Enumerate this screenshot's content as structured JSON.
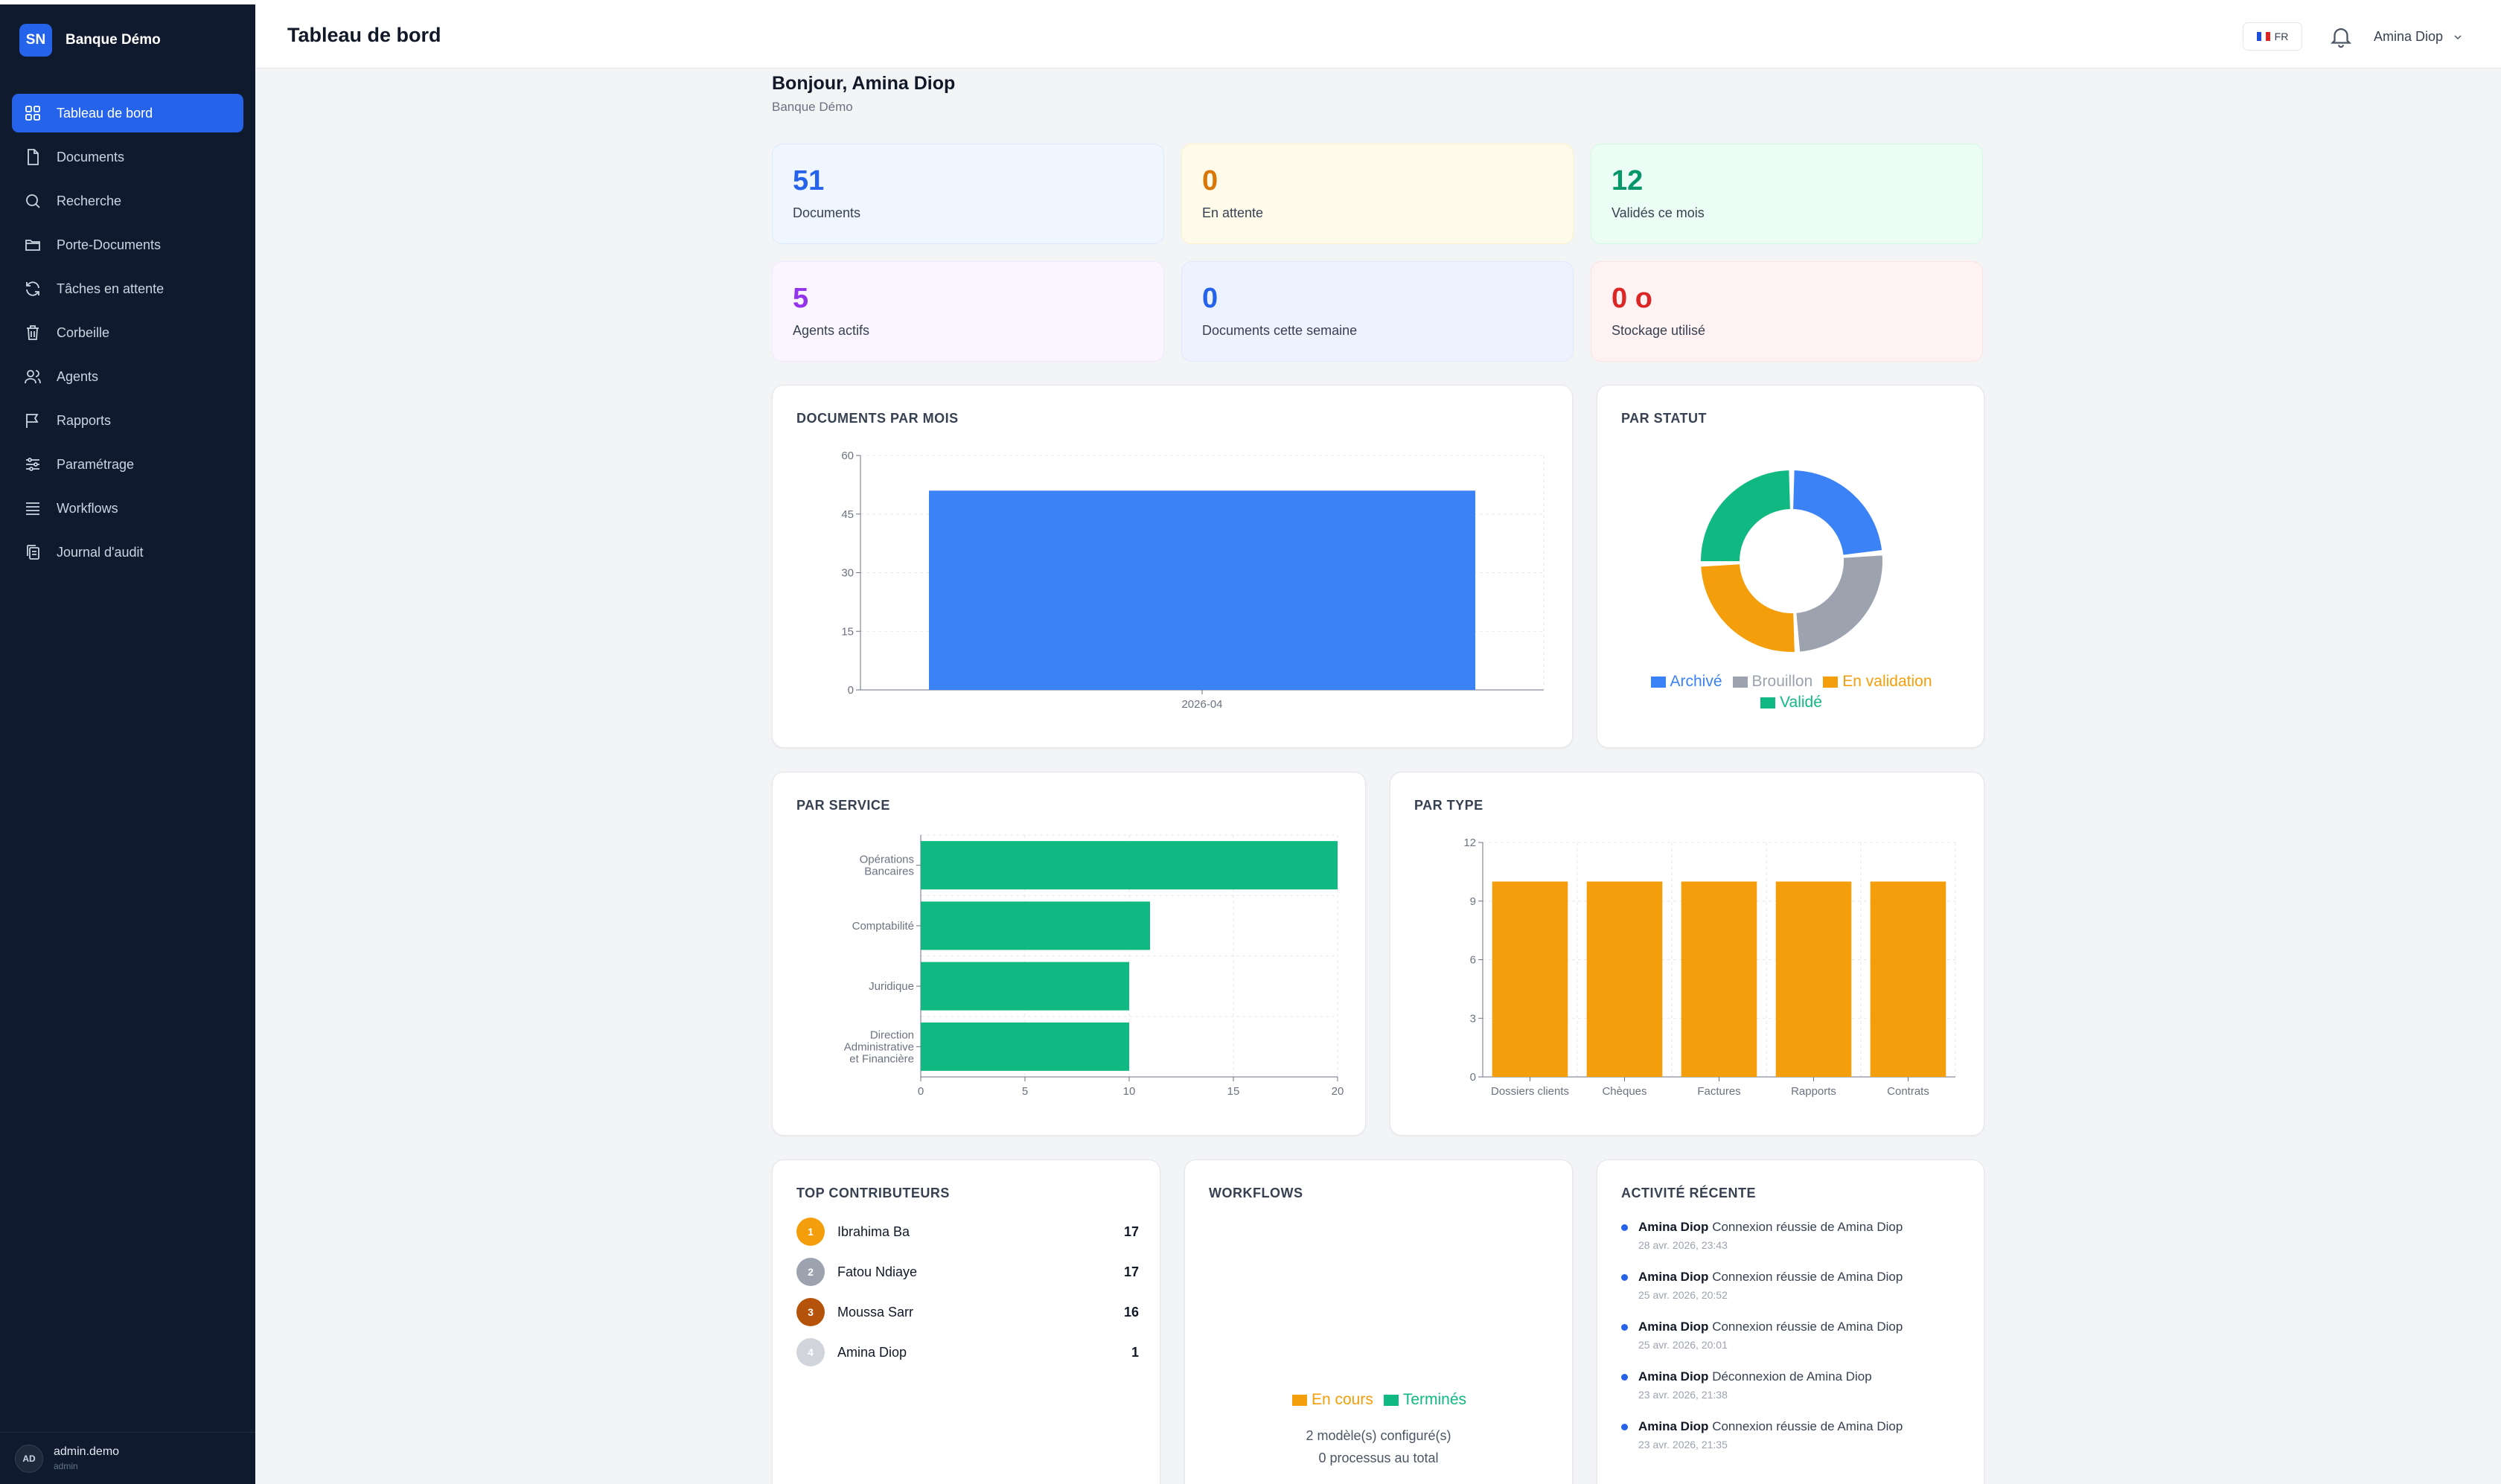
{
  "sidebar": {
    "logo": "SN",
    "brand": "Banque Démo",
    "items": [
      {
        "label": "Tableau de bord",
        "icon": "grid-icon"
      },
      {
        "label": "Documents",
        "icon": "file-icon"
      },
      {
        "label": "Recherche",
        "icon": "search-icon"
      },
      {
        "label": "Porte-Documents",
        "icon": "folder-icon"
      },
      {
        "label": "Tâches en attente",
        "icon": "refresh-icon"
      },
      {
        "label": "Corbeille",
        "icon": "trash-icon"
      },
      {
        "label": "Agents",
        "icon": "users-icon"
      },
      {
        "label": "Rapports",
        "icon": "flag-icon"
      },
      {
        "label": "Paramétrage",
        "icon": "sliders-icon"
      },
      {
        "label": "Workflows",
        "icon": "list-icon"
      },
      {
        "label": "Journal d'audit",
        "icon": "copy-icon"
      }
    ],
    "user": {
      "initials": "AD",
      "name": "admin.demo",
      "role": "admin"
    }
  },
  "header": {
    "title": "Tableau de bord",
    "lang": "FR",
    "user": "Amina Diop"
  },
  "greeting": {
    "title": "Bonjour, Amina Diop",
    "subtitle": "Banque Démo"
  },
  "stats": [
    {
      "value": "51",
      "label": "Documents",
      "color": "#2563eb"
    },
    {
      "value": "0",
      "label": "En attente",
      "color": "#d97706"
    },
    {
      "value": "12",
      "label": "Validés ce mois",
      "color": "#059669"
    },
    {
      "value": "5",
      "label": "Agents actifs",
      "color": "#9333ea"
    },
    {
      "value": "0",
      "label": "Documents cette semaine",
      "color": "#2563eb"
    },
    {
      "value": "0 o",
      "label": "Stockage utilisé",
      "color": "#dc2626"
    }
  ],
  "cards": {
    "docs_par_mois": "DOCUMENTS PAR MOIS",
    "par_statut": "PAR STATUT",
    "par_service": "PAR SERVICE",
    "par_type": "PAR TYPE",
    "top_contributeurs": "TOP CONTRIBUTEURS",
    "workflows": "WORKFLOWS",
    "activite": "ACTIVITÉ RÉCENTE"
  },
  "chart_data": [
    {
      "type": "bar",
      "title": "DOCUMENTS PAR MOIS",
      "categories": [
        "2026-04"
      ],
      "values": [
        51
      ],
      "ylim": [
        0,
        60
      ],
      "yticks": [
        0,
        15,
        30,
        45,
        60
      ],
      "color": "#3b82f6",
      "grid": true
    },
    {
      "type": "pie",
      "title": "PAR STATUT",
      "donut": true,
      "labels": [
        "Archivé",
        "Brouillon",
        "En validation",
        "Validé"
      ],
      "values": [
        12,
        13,
        13,
        13
      ],
      "colors": [
        "#3b82f6",
        "#9ca3af",
        "#f59e0b",
        "#10b981"
      ],
      "legend": "bottom"
    },
    {
      "type": "bar",
      "orientation": "horizontal",
      "title": "PAR SERVICE",
      "categories": [
        [
          "Opérations",
          "Bancaires"
        ],
        [
          "Comptabilité"
        ],
        [
          "Juridique"
        ],
        [
          "Direction",
          "Administrative",
          "et Financière"
        ]
      ],
      "values": [
        20,
        11,
        10,
        10
      ],
      "xlim": [
        0,
        20
      ],
      "xticks": [
        0,
        5,
        10,
        15,
        20
      ],
      "color": "#10b981",
      "grid": true
    },
    {
      "type": "bar",
      "title": "PAR TYPE",
      "categories": [
        "Dossiers clients",
        "Chèques",
        "Factures",
        "Rapports",
        "Contrats"
      ],
      "values": [
        10,
        10,
        10,
        10,
        10
      ],
      "ylim": [
        0,
        12
      ],
      "yticks": [
        0,
        3,
        6,
        9,
        12
      ],
      "color": "#f59e0b",
      "grid": true
    },
    {
      "type": "bar",
      "title": "WORKFLOWS",
      "series": [
        {
          "name": "En cours",
          "values": []
        },
        {
          "name": "Terminés",
          "values": []
        }
      ],
      "colors": [
        "#f59e0b",
        "#10b981"
      ]
    }
  ],
  "contributors": [
    {
      "rank": "1",
      "name": "Ibrahima Ba",
      "count": "17",
      "color": "#f59e0b"
    },
    {
      "rank": "2",
      "name": "Fatou Ndiaye",
      "count": "17",
      "color": "#9ca3af"
    },
    {
      "rank": "3",
      "name": "Moussa Sarr",
      "count": "16",
      "color": "#b45309"
    },
    {
      "rank": "4",
      "name": "Amina Diop",
      "count": "1",
      "color": "#d1d5db"
    }
  ],
  "workflows": {
    "legend": [
      "En cours",
      "Terminés"
    ],
    "models": "2 modèle(s) configuré(s)",
    "processes": "0 processus au total"
  },
  "activity": [
    {
      "user": "Amina Diop",
      "msg": "Connexion réussie de Amina Diop",
      "time": "28 avr. 2026, 23:43"
    },
    {
      "user": "Amina Diop",
      "msg": "Connexion réussie de Amina Diop",
      "time": "25 avr. 2026, 20:52"
    },
    {
      "user": "Amina Diop",
      "msg": "Connexion réussie de Amina Diop",
      "time": "25 avr. 2026, 20:01"
    },
    {
      "user": "Amina Diop",
      "msg": "Déconnexion de Amina Diop",
      "time": "23 avr. 2026, 21:38"
    },
    {
      "user": "Amina Diop",
      "msg": "Connexion réussie de Amina Diop",
      "time": "23 avr. 2026, 21:35"
    }
  ]
}
